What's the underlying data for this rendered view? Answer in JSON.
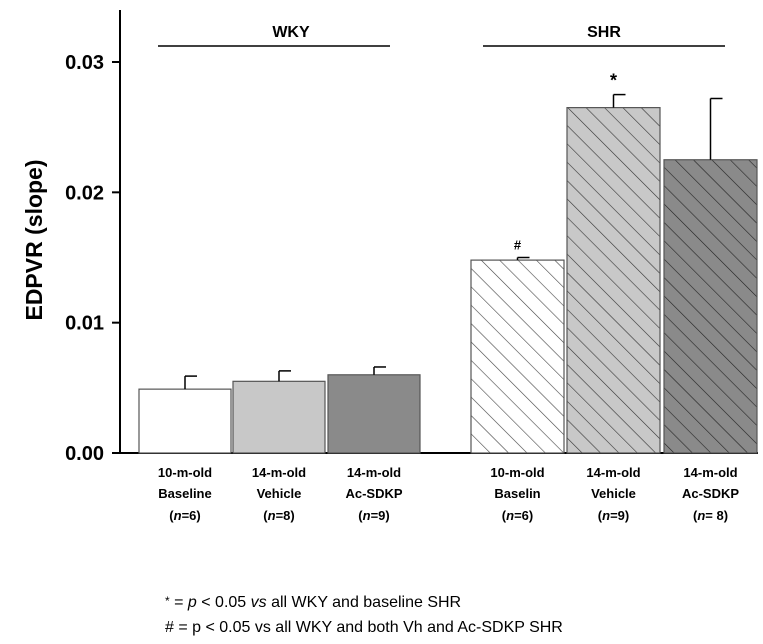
{
  "chart_data": {
    "type": "bar",
    "title": "",
    "xlabel": "",
    "ylabel": "EDPVR (slope)",
    "ylim": [
      0,
      0.033
    ],
    "yticks": [
      "0.00",
      "0.01",
      "0.02",
      "0.03"
    ],
    "yticks_values": [
      0,
      0.01,
      0.02,
      0.03
    ],
    "grid": false,
    "groups": [
      {
        "label": "WKY",
        "bars": [
          {
            "line1": "10-m-old",
            "line2": "Baseline",
            "n": "6",
            "value": 0.0049,
            "error": 0.001,
            "fill": "white",
            "hatch": "none",
            "mark": ""
          },
          {
            "line1": "14-m-old",
            "line2": "Vehicle",
            "n": "8",
            "value": 0.0055,
            "error": 0.0008,
            "fill": "#c8c8c8",
            "hatch": "none",
            "mark": ""
          },
          {
            "line1": "14-m-old",
            "line2": "Ac-SDKP",
            "n": "9",
            "value": 0.006,
            "error": 0.0006,
            "fill": "#8a8a8a",
            "hatch": "none",
            "mark": ""
          }
        ]
      },
      {
        "label": "SHR",
        "bars": [
          {
            "line1": "10-m-old",
            "line2": "Baselin",
            "n": "6",
            "value": 0.0148,
            "error": 0.0002,
            "fill": "white",
            "hatch": "#444444",
            "mark": "#"
          },
          {
            "line1": "14-m-old",
            "line2": "Vehicle",
            "n": "9",
            "value": 0.0265,
            "error": 0.001,
            "fill": "#c8c8c8",
            "hatch": "#333333",
            "mark": "*"
          },
          {
            "line1": "14-m-old",
            "line2": "Ac-SDKP",
            "n": " 8",
            "value": 0.0225,
            "error": 0.0047,
            "fill": "#8a8a8a",
            "hatch": "#222222",
            "mark": ""
          }
        ]
      }
    ],
    "n_prefix": "n",
    "n_sep": "="
  },
  "footnotes": {
    "star_symbol": "*",
    "star_eq": " = ",
    "star_p": "p",
    "star_mid": " < 0.05 ",
    "star_vs": "vs",
    "star_rest": " all WKY and baseline SHR",
    "hash_line": "# = p < 0.05 vs all WKY and both Vh and Ac-SDKP SHR"
  }
}
